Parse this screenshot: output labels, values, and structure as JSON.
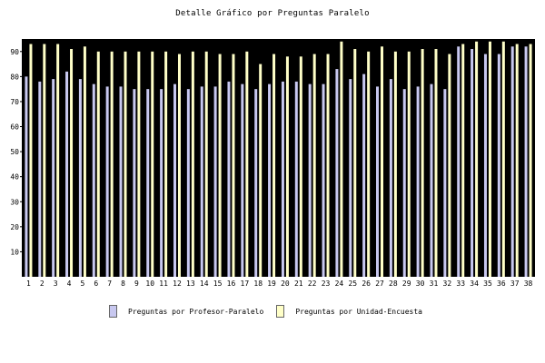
{
  "chart_data": {
    "type": "bar",
    "title": "Detalle Gráfico por Preguntas Paralelo",
    "xlabel": "",
    "ylabel": "",
    "ylim": [
      0,
      95
    ],
    "yticks": [
      10,
      20,
      30,
      40,
      50,
      60,
      70,
      80,
      90
    ],
    "categories": [
      "1",
      "2",
      "3",
      "4",
      "5",
      "6",
      "7",
      "8",
      "9",
      "10",
      "11",
      "12",
      "13",
      "14",
      "15",
      "16",
      "17",
      "18",
      "19",
      "20",
      "21",
      "22",
      "23",
      "24",
      "25",
      "26",
      "27",
      "28",
      "29",
      "30",
      "31",
      "32",
      "33",
      "34",
      "35",
      "36",
      "37",
      "38"
    ],
    "series": [
      {
        "name": "Preguntas por Profesor-Paralelo",
        "color": "#c8c8f0",
        "values": [
          80,
          78,
          79,
          82,
          79,
          77,
          76,
          76,
          75,
          75,
          75,
          77,
          75,
          76,
          76,
          78,
          77,
          75,
          77,
          78,
          78,
          77,
          77,
          83,
          79,
          81,
          76,
          79,
          75,
          76,
          77,
          75,
          92,
          91,
          89,
          89,
          92,
          92
        ]
      },
      {
        "name": "Preguntas por Unidad-Encuesta",
        "color": "#ffffc8",
        "values": [
          93,
          93,
          93,
          91,
          92,
          90,
          90,
          90,
          90,
          90,
          90,
          89,
          90,
          90,
          89,
          89,
          90,
          85,
          89,
          88,
          88,
          89,
          89,
          94,
          91,
          90,
          92,
          90,
          90,
          91,
          91,
          89,
          93,
          94,
          94,
          94,
          93,
          93
        ]
      }
    ],
    "background": "#000000",
    "grid": false,
    "legend_position": "bottom"
  }
}
